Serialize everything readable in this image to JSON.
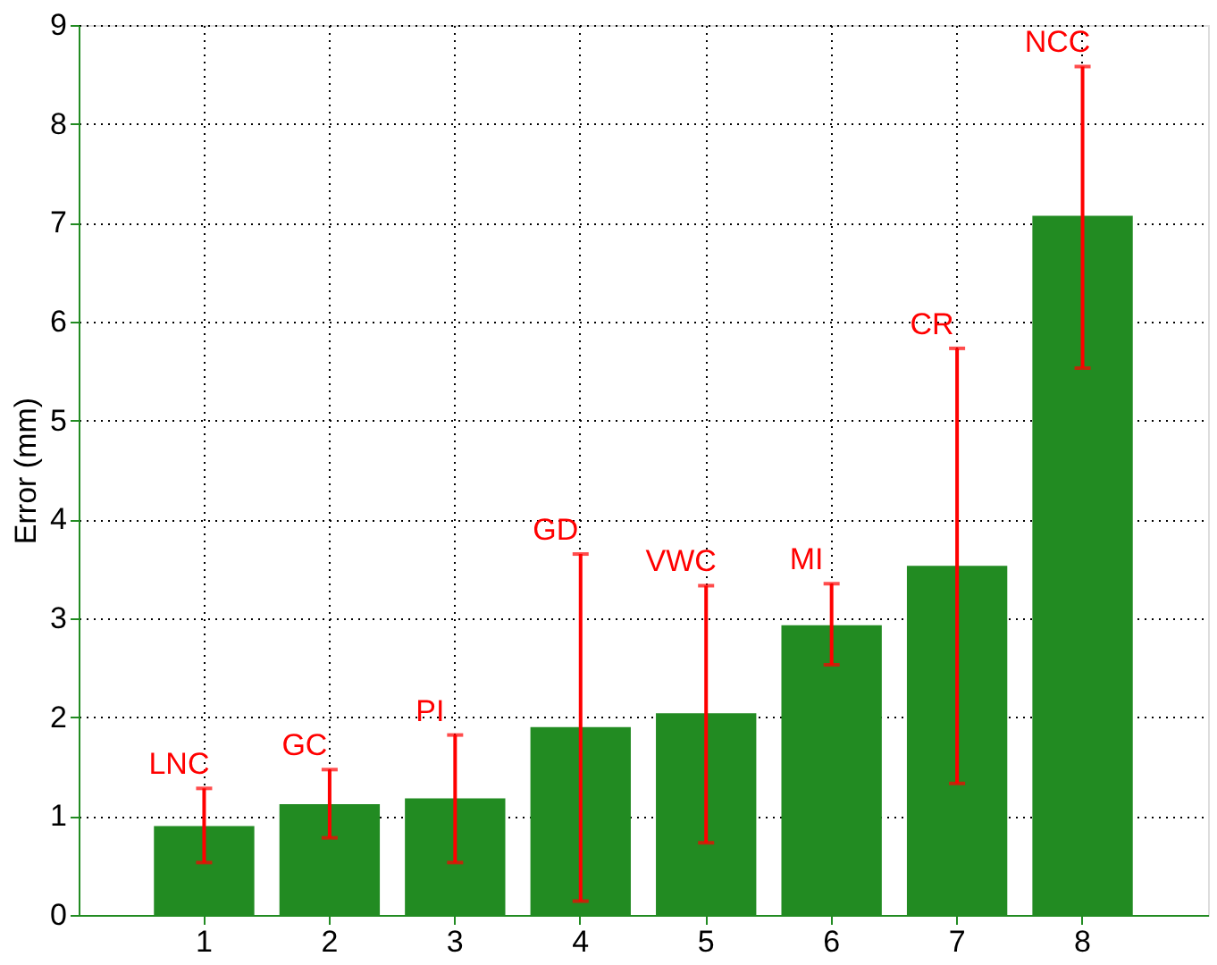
{
  "chart_data": {
    "type": "bar",
    "ylabel": "Error (mm)",
    "categories": [
      "1",
      "2",
      "3",
      "4",
      "5",
      "6",
      "7",
      "8"
    ],
    "series": [
      {
        "color": "#228b22",
        "values": [
          0.9,
          1.12,
          1.18,
          1.9,
          2.04,
          2.93,
          3.53,
          7.07
        ],
        "errors": [
          [
            0.53,
            1.28
          ],
          [
            0.78,
            1.47
          ],
          [
            0.53,
            1.82
          ],
          [
            0.14,
            3.65
          ],
          [
            0.73,
            3.33
          ],
          [
            2.53,
            3.35
          ],
          [
            1.33,
            5.73
          ],
          [
            5.53,
            8.58
          ]
        ]
      }
    ],
    "ylim": [
      0,
      9
    ],
    "yticks": [
      0,
      1,
      2,
      3,
      4,
      5,
      6,
      7,
      8,
      9
    ],
    "grid": true,
    "annotations": [
      "LNC",
      "GC",
      "PI",
      "GD",
      "VWC",
      "MI",
      "CR",
      "NCC"
    ]
  }
}
